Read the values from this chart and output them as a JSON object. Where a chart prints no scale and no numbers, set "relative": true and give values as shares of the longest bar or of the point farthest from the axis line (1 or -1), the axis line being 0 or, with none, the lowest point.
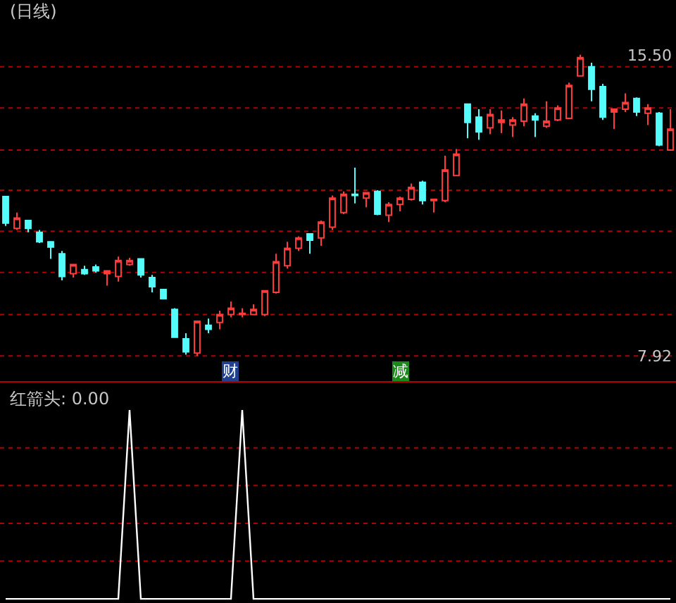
{
  "chart_data": [
    {
      "type": "candlestick",
      "title": "(日线)",
      "categories": [
        null,
        null,
        null,
        null,
        null,
        null,
        null,
        null,
        null,
        null,
        null,
        null,
        null,
        null,
        null,
        null,
        null,
        null,
        null,
        null,
        null,
        null,
        null,
        null,
        null,
        null,
        null,
        null,
        null,
        null,
        null,
        null,
        null,
        null,
        null,
        null,
        null,
        null,
        null,
        null,
        null,
        null,
        null,
        null,
        null,
        null,
        null,
        null,
        null,
        null,
        null,
        null,
        null,
        null,
        null,
        null,
        null,
        null,
        null,
        null
      ],
      "ohlc": [
        [
          11.93,
          11.93,
          11.19,
          11.26
        ],
        [
          11.13,
          11.53,
          11.09,
          11.39
        ],
        [
          11.33,
          11.33,
          11.03,
          11.13
        ],
        [
          11.03,
          11.09,
          10.76,
          10.79
        ],
        [
          10.79,
          10.79,
          10.36,
          10.66
        ],
        [
          10.49,
          10.56,
          9.82,
          9.92
        ],
        [
          9.99,
          10.22,
          9.89,
          10.22
        ],
        [
          10.09,
          10.19,
          9.96,
          9.99
        ],
        [
          10.16,
          10.22,
          10.02,
          10.06
        ],
        [
          9.99,
          10.06,
          9.69,
          10.06
        ],
        [
          9.92,
          10.42,
          9.79,
          10.32
        ],
        [
          10.22,
          10.39,
          10.19,
          10.32
        ],
        [
          10.36,
          10.36,
          9.89,
          9.96
        ],
        [
          9.89,
          9.96,
          9.52,
          9.66
        ],
        [
          9.59,
          9.59,
          9.36,
          9.36
        ],
        [
          9.09,
          9.12,
          8.39,
          8.39
        ],
        [
          8.35,
          8.49,
          7.95,
          8.02
        ],
        [
          7.99,
          8.79,
          7.92,
          8.79
        ],
        [
          8.69,
          8.86,
          8.49,
          8.59
        ],
        [
          8.76,
          9.06,
          8.59,
          8.96
        ],
        [
          8.96,
          9.29,
          8.89,
          9.12
        ],
        [
          8.96,
          9.12,
          8.89,
          8.99
        ],
        [
          8.96,
          9.22,
          8.96,
          9.09
        ],
        [
          8.96,
          9.56,
          8.92,
          9.56
        ],
        [
          9.52,
          10.49,
          9.49,
          10.29
        ],
        [
          10.19,
          10.79,
          10.12,
          10.63
        ],
        [
          10.63,
          10.93,
          10.56,
          10.89
        ],
        [
          10.99,
          10.99,
          10.49,
          10.83
        ],
        [
          10.89,
          11.33,
          10.69,
          11.29
        ],
        [
          11.16,
          11.96,
          11.09,
          11.89
        ],
        [
          11.53,
          12.06,
          11.49,
          11.99
        ],
        [
          11.99,
          12.66,
          11.76,
          11.96
        ],
        [
          11.89,
          12.03,
          11.66,
          12.03
        ],
        [
          12.06,
          12.09,
          11.46,
          11.49
        ],
        [
          11.46,
          11.79,
          11.29,
          11.73
        ],
        [
          11.73,
          11.93,
          11.56,
          11.89
        ],
        [
          11.86,
          12.26,
          11.83,
          12.16
        ],
        [
          12.29,
          12.33,
          11.73,
          11.83
        ],
        [
          11.83,
          11.86,
          11.53,
          11.86
        ],
        [
          11.83,
          12.96,
          11.79,
          12.6
        ],
        [
          12.46,
          13.13,
          12.46,
          13.0
        ],
        [
          14.26,
          14.26,
          13.4,
          13.8
        ],
        [
          13.93,
          14.13,
          13.36,
          13.56
        ],
        [
          13.66,
          14.13,
          13.5,
          14.0
        ],
        [
          13.8,
          14.1,
          13.53,
          13.86
        ],
        [
          13.73,
          13.93,
          13.43,
          13.86
        ],
        [
          13.83,
          14.4,
          13.7,
          14.26
        ],
        [
          13.96,
          14.03,
          13.43,
          13.86
        ],
        [
          13.7,
          14.33,
          13.66,
          13.83
        ],
        [
          13.86,
          14.23,
          13.83,
          14.16
        ],
        [
          13.9,
          14.8,
          13.9,
          14.73
        ],
        [
          14.97,
          15.5,
          14.97,
          15.43
        ],
        [
          15.2,
          15.3,
          14.33,
          14.63
        ],
        [
          14.7,
          14.77,
          13.86,
          13.93
        ],
        [
          14.06,
          14.13,
          13.63,
          14.13
        ],
        [
          14.13,
          14.53,
          14.06,
          14.3
        ],
        [
          14.4,
          14.43,
          13.96,
          14.06
        ],
        [
          14.03,
          14.26,
          13.73,
          14.16
        ],
        [
          14.03,
          14.06,
          13.2,
          13.23
        ],
        [
          13.1,
          14.13,
          13.1,
          13.63
        ]
      ],
      "colors": [
        "#54fcfc",
        "#ff3c3c",
        "#54fcfc",
        "#54fcfc",
        "#54fcfc",
        "#54fcfc",
        "#ff3c3c",
        "#54fcfc",
        "#54fcfc",
        "#ff3c3c",
        "#ff3c3c",
        "#ff3c3c",
        "#54fcfc",
        "#54fcfc",
        "#54fcfc",
        "#54fcfc",
        "#54fcfc",
        "#ff3c3c",
        "#54fcfc",
        "#ff3c3c",
        "#ff3c3c",
        "#ff3c3c",
        "#ff3c3c",
        "#ff3c3c",
        "#ff3c3c",
        "#ff3c3c",
        "#ff3c3c",
        "#54fcfc",
        "#ff3c3c",
        "#ff3c3c",
        "#ff3c3c",
        "#54fcfc",
        "#ff3c3c",
        "#54fcfc",
        "#ff3c3c",
        "#ff3c3c",
        "#ff3c3c",
        "#54fcfc",
        "#ff3c3c",
        "#ff3c3c",
        "#ff3c3c",
        "#54fcfc",
        "#54fcfc",
        "#ff3c3c",
        "#ff3c3c",
        "#ff3c3c",
        "#ff3c3c",
        "#54fcfc",
        "#ff3c3c",
        "#ff3c3c",
        "#ff3c3c",
        "#ff3c3c",
        "#54fcfc",
        "#54fcfc",
        "#ff3c3c",
        "#ff3c3c",
        "#54fcfc",
        "#ff3c3c",
        "#54fcfc",
        "#ff3c3c"
      ],
      "ylim": [
        7.3,
        16.88
      ],
      "yticks": [
        7.92,
        {
          "value": 15.5,
          "label": "15.50"
        }
      ],
      "tick_labels": "y",
      "ref_lines": [
        {
          "axis": "y",
          "value": 7.92,
          "color": "#b40000",
          "line_style": "dotted"
        },
        {
          "axis": "y",
          "value": 8.96,
          "color": "#b40000",
          "line_style": "dotted"
        },
        {
          "axis": "y",
          "value": 10.02,
          "color": "#b40000",
          "line_style": "dotted"
        },
        {
          "axis": "y",
          "value": 11.06,
          "color": "#b40000",
          "line_style": "dotted"
        },
        {
          "axis": "y",
          "value": 12.09,
          "color": "#b40000",
          "line_style": "dotted"
        },
        {
          "axis": "y",
          "value": 13.1,
          "color": "#b40000",
          "line_style": "dotted"
        },
        {
          "axis": "y",
          "value": 14.16,
          "color": "#b40000",
          "line_style": "dotted"
        },
        {
          "axis": "y",
          "value": 15.2,
          "color": "#b40000",
          "line_style": "dotted"
        }
      ],
      "annotations": [
        "财",
        "减"
      ]
    },
    {
      "type": "line",
      "title": "红箭头: 0.00",
      "relative": true,
      "categories": [
        null,
        null,
        null,
        null,
        null,
        null,
        null,
        null,
        null,
        null,
        null,
        null,
        null,
        null,
        null,
        null,
        null,
        null,
        null,
        null,
        null,
        null,
        null,
        null,
        null,
        null,
        null,
        null,
        null,
        null,
        null,
        null,
        null,
        null,
        null,
        null,
        null,
        null,
        null,
        null,
        null,
        null,
        null,
        null,
        null,
        null,
        null,
        null,
        null,
        null,
        null,
        null,
        null,
        null,
        null,
        null,
        null,
        null,
        null,
        null
      ],
      "series": [
        {
          "color": "#ffffff",
          "values": [
            0,
            0,
            0,
            0,
            0,
            0,
            0,
            0,
            0,
            0,
            0,
            1,
            0,
            0,
            0,
            0,
            0,
            0,
            0,
            0,
            0,
            1,
            0,
            0,
            0,
            0,
            0,
            0,
            0,
            0,
            0,
            0,
            0,
            0,
            0,
            0,
            0,
            0,
            0,
            0,
            0,
            0,
            0,
            0,
            0,
            0,
            0,
            0,
            0,
            0,
            0,
            0,
            0,
            0,
            0,
            0,
            0,
            0,
            0,
            0
          ]
        }
      ],
      "ref_lines": [
        {
          "axis": "y",
          "value": 0.2,
          "color": "#b40000",
          "line_style": "dotted"
        },
        {
          "axis": "y",
          "value": 0.4,
          "color": "#b40000",
          "line_style": "dotted"
        },
        {
          "axis": "y",
          "value": 0.6,
          "color": "#b40000",
          "line_style": "dotted"
        },
        {
          "axis": "y",
          "value": 0.8,
          "color": "#b40000",
          "line_style": "dotted"
        }
      ]
    }
  ]
}
